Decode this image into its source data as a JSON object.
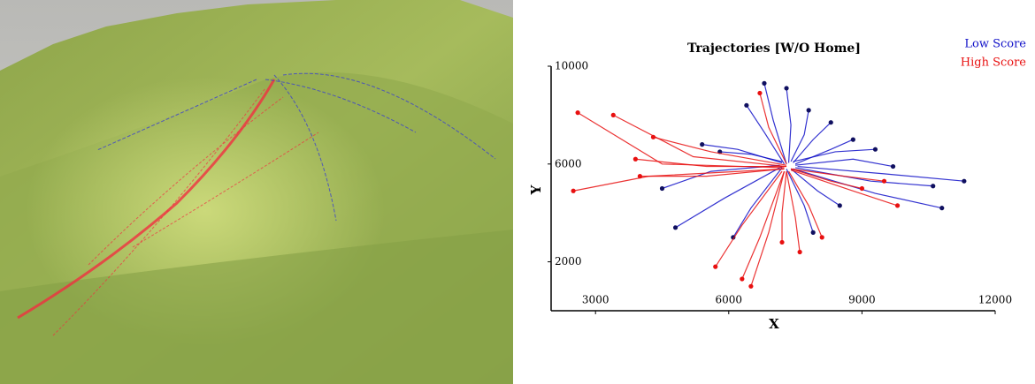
{
  "chart_data": {
    "type": "trajectory",
    "title": "Trajectories [W/O Home]",
    "x_label": "X",
    "y_label": "Y",
    "xlim": [
      2000,
      12000
    ],
    "xticks": [
      3000,
      6000,
      9000,
      12000
    ],
    "ylim": [
      0,
      10000
    ],
    "yticks": [
      2000,
      6000,
      10000
    ],
    "legend": "top-right",
    "series": [
      {
        "name": "Low Score",
        "color": "#1010c8",
        "trajectories": [
          {
            "x": [
              7300,
              7000,
              6800
            ],
            "y": [
              6000,
              7800,
              9300
            ]
          },
          {
            "x": [
              7350,
              7400,
              7300
            ],
            "y": [
              6050,
              7600,
              9100
            ]
          },
          {
            "x": [
              7250,
              6800,
              6400
            ],
            "y": [
              6000,
              7300,
              8400
            ]
          },
          {
            "x": [
              7400,
              7700,
              7800
            ],
            "y": [
              6100,
              7200,
              8200
            ]
          },
          {
            "x": [
              7450,
              7900,
              8300
            ],
            "y": [
              6050,
              7000,
              7700
            ]
          },
          {
            "x": [
              7500,
              8300,
              8800
            ],
            "y": [
              6000,
              6600,
              7000
            ]
          },
          {
            "x": [
              7500,
              8800,
              9700
            ],
            "y": [
              5950,
              6200,
              5900
            ]
          },
          {
            "x": [
              7550,
              9500,
              11300
            ],
            "y": [
              5900,
              5600,
              5300
            ]
          },
          {
            "x": [
              7500,
              9200,
              10600
            ],
            "y": [
              5850,
              5300,
              5100
            ]
          },
          {
            "x": [
              7450,
              9300,
              10800
            ],
            "y": [
              5800,
              4800,
              4200
            ]
          },
          {
            "x": [
              7400,
              8000,
              8500
            ],
            "y": [
              5800,
              4900,
              4300
            ]
          },
          {
            "x": [
              7300,
              7700,
              7900
            ],
            "y": [
              5800,
              4300,
              3200
            ]
          },
          {
            "x": [
              7200,
              5900,
              4800
            ],
            "y": [
              5900,
              4600,
              3400
            ]
          },
          {
            "x": [
              7200,
              6500,
              6100
            ],
            "y": [
              5850,
              4200,
              3000
            ]
          },
          {
            "x": [
              7200,
              6200,
              5400
            ],
            "y": [
              6050,
              6600,
              6800
            ]
          },
          {
            "x": [
              7150,
              5600,
              4500
            ],
            "y": [
              5950,
              5700,
              5000
            ]
          },
          {
            "x": [
              7450,
              8400,
              9300
            ],
            "y": [
              6100,
              6500,
              6600
            ]
          },
          {
            "x": [
              7200,
              6500,
              5800
            ],
            "y": [
              6100,
              6400,
              6500
            ]
          }
        ]
      },
      {
        "name": "High Score",
        "color": "#e81010",
        "trajectories": [
          {
            "x": [
              7300,
              5200,
              3400
            ],
            "y": [
              5900,
              6300,
              8000
            ]
          },
          {
            "x": [
              7250,
              4500,
              2600
            ],
            "y": [
              5850,
              6000,
              8100
            ]
          },
          {
            "x": [
              7250,
              4200,
              2500
            ],
            "y": [
              5800,
              5500,
              4900
            ]
          },
          {
            "x": [
              7300,
              5500,
              3900
            ],
            "y": [
              5900,
              5900,
              6200
            ]
          },
          {
            "x": [
              7300,
              5600,
              4300
            ],
            "y": [
              5950,
              6500,
              7100
            ]
          },
          {
            "x": [
              7200,
              6300,
              5700
            ],
            "y": [
              5700,
              3500,
              1800
            ]
          },
          {
            "x": [
              7250,
              6900,
              6500
            ],
            "y": [
              5700,
              3200,
              1000
            ]
          },
          {
            "x": [
              7250,
              6700,
              6300
            ],
            "y": [
              5700,
              3000,
              1300
            ]
          },
          {
            "x": [
              7300,
              7200,
              7200
            ],
            "y": [
              5700,
              4000,
              2800
            ]
          },
          {
            "x": [
              7350,
              7800,
              8100
            ],
            "y": [
              5700,
              4300,
              3000
            ]
          },
          {
            "x": [
              7400,
              8600,
              9500
            ],
            "y": [
              5800,
              5500,
              5300
            ]
          },
          {
            "x": [
              7400,
              8300,
              9000
            ],
            "y": [
              5800,
              5300,
              5000
            ]
          },
          {
            "x": [
              7400,
              8800,
              9800
            ],
            "y": [
              5750,
              4900,
              4300
            ]
          },
          {
            "x": [
              7300,
              6900,
              6700
            ],
            "y": [
              6000,
              7500,
              8900
            ]
          },
          {
            "x": [
              7300,
              7500,
              7600
            ],
            "y": [
              5700,
              3800,
              2400
            ]
          },
          {
            "x": [
              7250,
              5500,
              4000
            ],
            "y": [
              5800,
              5500,
              5500
            ]
          }
        ]
      }
    ]
  }
}
